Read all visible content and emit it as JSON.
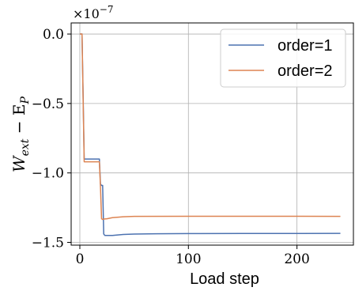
{
  "chart_data": {
    "type": "line",
    "title": "",
    "xlabel": "Load step",
    "ylabel_base": "W",
    "ylabel_sub1": "ext",
    "ylabel_mid": " − E",
    "ylabel_sub2": "P",
    "offset_prefix": "×10",
    "offset_exponent": "−7",
    "xlim": [
      -8,
      252
    ],
    "ylim": [
      -1.52,
      0.08
    ],
    "xticks": [
      0,
      100,
      200
    ],
    "xtick_labels": [
      "0",
      "100",
      "200"
    ],
    "yticks": [
      0.0,
      -0.5,
      -1.0,
      -1.5
    ],
    "ytick_labels": [
      "0.0",
      "−0.5",
      "−1.0",
      "−1.5"
    ],
    "grid": true,
    "legend_position": "top-right",
    "series": [
      {
        "name": "order=1",
        "color": "#4c72b0",
        "points": [
          [
            0,
            0.0
          ],
          [
            1,
            0.0
          ],
          [
            2,
            0.0
          ],
          [
            3,
            -0.43
          ],
          [
            4,
            -0.9
          ],
          [
            5,
            -0.9
          ],
          [
            10,
            -0.9
          ],
          [
            16,
            -0.9
          ],
          [
            18,
            -0.9
          ],
          [
            19,
            -1.08
          ],
          [
            20,
            -1.09
          ],
          [
            21,
            -1.09
          ],
          [
            22,
            -1.44
          ],
          [
            23,
            -1.45
          ],
          [
            25,
            -1.45
          ],
          [
            30,
            -1.45
          ],
          [
            40,
            -1.443
          ],
          [
            50,
            -1.44
          ],
          [
            70,
            -1.438
          ],
          [
            100,
            -1.437
          ],
          [
            150,
            -1.436
          ],
          [
            200,
            -1.436
          ],
          [
            240,
            -1.435
          ]
        ]
      },
      {
        "name": "order=2",
        "color": "#dd8452",
        "points": [
          [
            0,
            0.0
          ],
          [
            1,
            0.0
          ],
          [
            2,
            0.0
          ],
          [
            3,
            -0.46
          ],
          [
            4,
            -0.92
          ],
          [
            5,
            -0.92
          ],
          [
            10,
            -0.92
          ],
          [
            16,
            -0.92
          ],
          [
            18,
            -0.92
          ],
          [
            19,
            -1.1
          ],
          [
            20,
            -1.33
          ],
          [
            21,
            -1.335
          ],
          [
            22,
            -1.332
          ],
          [
            25,
            -1.33
          ],
          [
            30,
            -1.322
          ],
          [
            40,
            -1.316
          ],
          [
            50,
            -1.313
          ],
          [
            100,
            -1.312
          ],
          [
            150,
            -1.312
          ],
          [
            200,
            -1.312
          ],
          [
            240,
            -1.313
          ]
        ]
      }
    ]
  }
}
